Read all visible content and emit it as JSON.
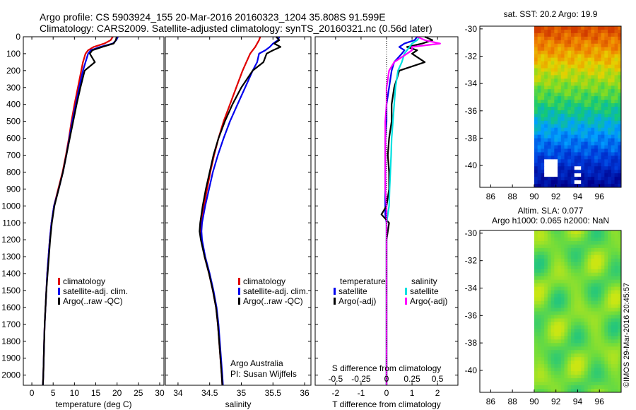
{
  "header": {
    "line1": "Argo profile: CS 5903924_155 20-Mar-2016 20160323_1204 35.808S 91.599E",
    "line2": "Climatology: CARS2009. Satellite-adjusted climatology: synTS_20160321.nc (0.56d later)"
  },
  "colors": {
    "climatology": "#e00000",
    "satellite": "#0000ee",
    "argo": "#000000",
    "salinity_sat": "#00e0e0",
    "salinity_argo": "#ff00ff"
  },
  "chart_data": [
    {
      "id": "temperature",
      "type": "line",
      "xlabel": "temperature (deg C)",
      "ylabel": "",
      "xlim": [
        -2,
        31
      ],
      "ylim": [
        2060,
        0
      ],
      "xticks": [
        0,
        5,
        10,
        15,
        20,
        25,
        30
      ],
      "yticks": [
        0,
        100,
        200,
        300,
        400,
        500,
        600,
        700,
        800,
        900,
        1000,
        1100,
        1200,
        1300,
        1400,
        1500,
        1600,
        1700,
        1800,
        1900,
        2000
      ],
      "depth": [
        0,
        20,
        40,
        60,
        80,
        100,
        150,
        200,
        300,
        400,
        500,
        600,
        700,
        800,
        900,
        1000,
        1100,
        1200,
        1300,
        1400,
        1500,
        1600,
        1700,
        1800,
        1900,
        2000,
        2060
      ],
      "series": [
        {
          "name": "climatology",
          "color_key": "climatology",
          "values": [
            19.0,
            18.5,
            17.0,
            14.5,
            13.2,
            12.6,
            12.0,
            11.6,
            10.8,
            10.0,
            9.3,
            8.7,
            8.0,
            7.2,
            6.2,
            5.2,
            4.6,
            4.2,
            3.9,
            3.6,
            3.4,
            3.2,
            3.0,
            2.9,
            2.8,
            2.7,
            2.6
          ]
        },
        {
          "name": "satellite-adj. clim.",
          "color_key": "satellite",
          "values": [
            20.2,
            19.8,
            19.0,
            16.0,
            13.8,
            13.2,
            12.6,
            12.0,
            11.1,
            10.3,
            9.5,
            8.8,
            8.1,
            7.3,
            6.3,
            5.2,
            4.6,
            4.2,
            3.9,
            3.6,
            3.4,
            3.2,
            3.0,
            2.9,
            2.8,
            2.7,
            2.6
          ]
        },
        {
          "name": "Argo(..raw -QC)",
          "color_key": "argo",
          "values": [
            19.9,
            19.7,
            19.2,
            16.5,
            14.2,
            13.6,
            14.8,
            12.4,
            11.4,
            10.5,
            9.7,
            8.9,
            8.1,
            7.3,
            6.3,
            5.3,
            4.7,
            4.3,
            4.0,
            3.7,
            3.4,
            3.2,
            3.0,
            2.9,
            2.8,
            2.7,
            2.6
          ]
        }
      ],
      "legend": [
        "climatology",
        "satellite-adj. clim.",
        "Argo(..raw -QC)"
      ]
    },
    {
      "id": "salinity",
      "type": "line",
      "xlabel": "salinity",
      "ylabel": "",
      "xlim": [
        33.8,
        36.1
      ],
      "ylim": [
        2060,
        0
      ],
      "xticks": [
        34,
        34.5,
        35,
        35.5,
        36
      ],
      "depth": [
        0,
        20,
        40,
        60,
        80,
        100,
        150,
        200,
        300,
        400,
        500,
        600,
        700,
        800,
        900,
        1000,
        1100,
        1150,
        1200,
        1300,
        1400,
        1500,
        1600,
        1700,
        1800,
        1900,
        2000,
        2060
      ],
      "series": [
        {
          "name": "climatology",
          "color_key": "climatology",
          "values": [
            35.3,
            35.28,
            35.25,
            35.22,
            35.18,
            35.14,
            35.08,
            35.02,
            34.92,
            34.82,
            34.72,
            34.64,
            34.57,
            34.51,
            34.46,
            34.41,
            34.37,
            34.36,
            34.37,
            34.42,
            34.49,
            34.55,
            34.6,
            34.63,
            34.65,
            34.67,
            34.69,
            34.7
          ]
        },
        {
          "name": "satellite-adj. clim.",
          "color_key": "satellite",
          "values": [
            35.6,
            35.58,
            35.5,
            35.45,
            35.38,
            35.28,
            35.25,
            35.18,
            35.06,
            34.94,
            34.82,
            34.72,
            34.63,
            34.55,
            34.49,
            34.43,
            34.38,
            34.37,
            34.38,
            34.43,
            34.5,
            34.56,
            34.61,
            34.64,
            34.66,
            34.68,
            34.7,
            34.71
          ]
        },
        {
          "name": "Argo(..raw -QC)",
          "color_key": "argo",
          "values": [
            35.55,
            35.6,
            35.52,
            35.62,
            35.5,
            35.4,
            35.35,
            35.18,
            35.0,
            34.86,
            34.74,
            34.64,
            34.56,
            34.5,
            34.44,
            34.39,
            34.35,
            34.34,
            34.36,
            34.42,
            34.49,
            34.55,
            34.6,
            34.63,
            34.65,
            34.67,
            34.69,
            34.7
          ]
        }
      ],
      "legend": [
        "climatology",
        "satellite-adj. clim.",
        "Argo(..raw -QC)"
      ],
      "annotation": [
        "Argo Australia",
        "PI: Susan Wijffels"
      ]
    },
    {
      "id": "difference",
      "type": "line",
      "xlabel": "T difference from climatology",
      "xlabel_top": "S difference from climatology",
      "xlim": [
        -2.8,
        2.8
      ],
      "ylim": [
        2060,
        0
      ],
      "xticks": [
        -2,
        -1,
        0,
        1,
        2
      ],
      "xticks_s": [
        "-0.5",
        "-0.25",
        "0",
        "0.25",
        "0.5"
      ],
      "xticks_s_pos": [
        -2,
        -1,
        0,
        1,
        2
      ],
      "depth": [
        0,
        20,
        40,
        60,
        80,
        100,
        150,
        200,
        300,
        400,
        500,
        600,
        700,
        800,
        900,
        1000,
        1050,
        1100,
        1200,
        1300,
        1400,
        1500,
        1600,
        1700,
        1800,
        1900,
        2000,
        2060
      ],
      "series": [
        {
          "name": "temperature satellite",
          "color_key": "satellite",
          "values": [
            1.2,
            1.1,
            0.7,
            0.5,
            0.7,
            0.6,
            0.3,
            0.2,
            0.1,
            0.0,
            0.0,
            -0.05,
            -0.05,
            -0.05,
            -0.05,
            -0.05,
            -0.05,
            0.0,
            0.0,
            0.0,
            0.0,
            0.0,
            0.0,
            0.0,
            0.0,
            0.0,
            0.0,
            0.0
          ]
        },
        {
          "name": "temperature Argo(-adj)",
          "color_key": "argo",
          "values": [
            1.5,
            1.8,
            1.4,
            0.8,
            1.2,
            1.0,
            1.5,
            0.5,
            0.3,
            0.2,
            0.2,
            0.1,
            0.05,
            0.1,
            0.1,
            0.0,
            -0.2,
            0.1,
            0.0,
            0.0,
            0.0,
            0.0,
            0.0,
            0.0,
            0.0,
            0.0,
            0.0,
            0.0
          ]
        },
        {
          "name": "salinity satellite",
          "color_key": "salinity_sat",
          "values": [
            1.3,
            1.2,
            1.0,
            0.9,
            0.8,
            0.7,
            0.6,
            0.45,
            0.35,
            0.3,
            0.25,
            0.2,
            0.18,
            0.15,
            0.12,
            0.1,
            0.05,
            0.0,
            0.0,
            0.0,
            0.0,
            0.0,
            0.0,
            0.0,
            0.0,
            0.0,
            0.0,
            0.0
          ]
        },
        {
          "name": "salinity Argo(-adj)",
          "color_key": "salinity_argo",
          "values": [
            1.2,
            1.5,
            2.1,
            1.0,
            1.0,
            0.8,
            0.3,
            0.1,
            0.0,
            0.0,
            -0.05,
            -0.05,
            -0.05,
            -0.05,
            -0.05,
            0.0,
            0.0,
            0.0,
            0.0,
            0.0,
            0.0,
            0.0,
            0.0,
            0.0,
            0.0,
            0.0,
            0.0,
            0.0
          ]
        }
      ],
      "legend_heading_t": "temperature",
      "legend_heading_s": "salinity",
      "legend_t": [
        "satellite",
        "Argo(-adj)"
      ],
      "legend_s": [
        "satellite",
        "Argo(-adj)"
      ]
    },
    {
      "id": "sst_map",
      "type": "heatmap",
      "title": "sat. SST: 20.2  Argo: 19.9",
      "xlim": [
        85,
        98
      ],
      "ylim": [
        -41.6,
        -29.8
      ],
      "xticks": [
        86,
        88,
        90,
        92,
        94,
        96
      ],
      "yticks": [
        -30,
        -32,
        -34,
        -36,
        -38,
        -40
      ],
      "data_xmin": 90
    },
    {
      "id": "sla_map",
      "type": "heatmap",
      "title_line1": "Altim. SLA: 0.077",
      "title_line2": "Argo h1000: 0.065  h2000: NaN",
      "xlim": [
        85,
        98
      ],
      "ylim": [
        -41.6,
        -29.8
      ],
      "xticks": [
        86,
        88,
        90,
        92,
        94,
        96
      ],
      "yticks": [
        -30,
        -32,
        -34,
        -36,
        -38,
        -40
      ],
      "data_xmin": 90
    }
  ],
  "credit": "©IMOS 29-Mar-2016 20:45:57"
}
